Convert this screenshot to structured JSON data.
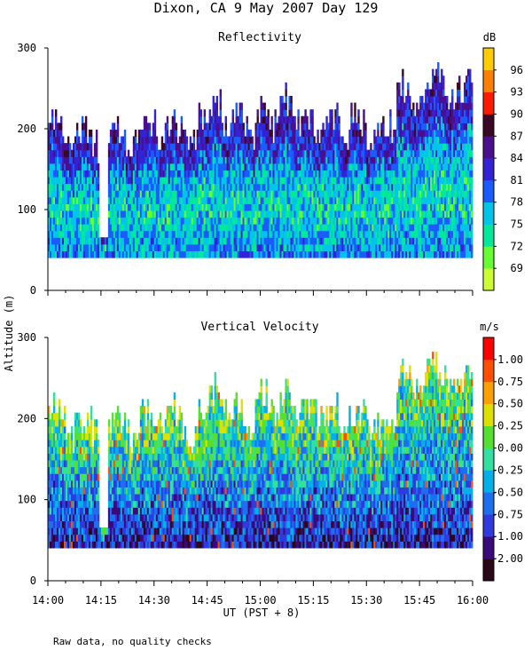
{
  "chart_data": {
    "type": "heatmap",
    "title": "Dixon, CA  9 May 2007  Day 129",
    "ylabel": "Altitude (m)",
    "xlabel": "UT  (PST + 8)",
    "footnote": "Raw data, no quality checks",
    "x_ticks": [
      "14:00",
      "14:15",
      "14:30",
      "14:45",
      "15:00",
      "15:15",
      "15:30",
      "15:45",
      "16:00"
    ],
    "x_range": [
      "14:00",
      "16:00"
    ],
    "panels": [
      {
        "title": "Reflectivity",
        "units": "dB",
        "y_ticks": [
          "0",
          "100",
          "200",
          "300"
        ],
        "ylim": [
          0,
          300
        ],
        "colorbar_ticks": [
          "69",
          "72",
          "75",
          "78",
          "81",
          "84",
          "87",
          "90",
          "93",
          "96"
        ],
        "colorbar_colors": [
          "#ccff33",
          "#66ff33",
          "#00e89a",
          "#00c4e8",
          "#1a5cff",
          "#3322d6",
          "#4a0f8c",
          "#3a0822",
          "#ff1a00",
          "#ff7f00",
          "#ffcc00"
        ],
        "data_altitude_range_m": [
          40,
          290
        ]
      },
      {
        "title": "Vertical Velocity",
        "units": "m/s",
        "y_ticks": [
          "0",
          "100",
          "200",
          "300"
        ],
        "ylim": [
          0,
          300
        ],
        "colorbar_ticks": [
          "-2.00",
          "-1.00",
          "-0.75",
          "-0.50",
          "-0.25",
          "0.00",
          "0.25",
          "0.50",
          "0.75",
          "1.00"
        ],
        "colorbar_colors": [
          "#2a0818",
          "#3a0a7a",
          "#2f3ae0",
          "#1e6ef0",
          "#00b0e8",
          "#33e0a0",
          "#55e030",
          "#e0e000",
          "#ffa000",
          "#ff5000",
          "#ff0000"
        ],
        "data_altitude_range_m": [
          40,
          290
        ]
      }
    ]
  }
}
